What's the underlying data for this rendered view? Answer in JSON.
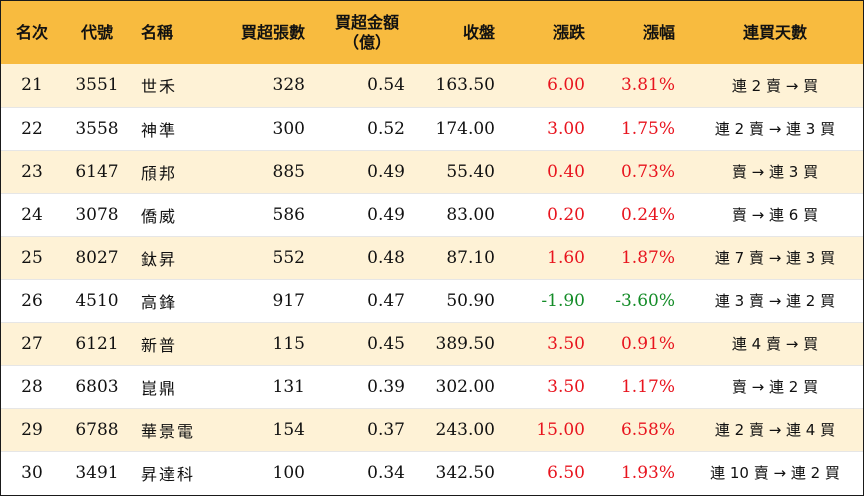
{
  "colors": {
    "header_bg": "#F8BB3F",
    "row_alt_bg": "#FEF2D6",
    "up": "#E8141E",
    "down": "#148C28"
  },
  "headers": {
    "rank": "名次",
    "code": "代號",
    "name": "名稱",
    "buy_lots": "買超張數",
    "buy_amount_1": "買超金額",
    "buy_amount_2": "（億）",
    "close": "收盤",
    "change": "漲跌",
    "change_pct": "漲幅",
    "streak": "連買天數"
  },
  "rows": [
    {
      "rank": "21",
      "code": "3551",
      "name": "世禾",
      "buy_lots": "328",
      "buy_amount": "0.54",
      "close": "163.50",
      "change": "6.00",
      "change_pct": "3.81%",
      "direction": "up",
      "streak": "連 2 賣 → 買"
    },
    {
      "rank": "22",
      "code": "3558",
      "name": "神準",
      "buy_lots": "300",
      "buy_amount": "0.52",
      "close": "174.00",
      "change": "3.00",
      "change_pct": "1.75%",
      "direction": "up",
      "streak": "連 2 賣 → 連 3 買"
    },
    {
      "rank": "23",
      "code": "6147",
      "name": "頎邦",
      "buy_lots": "885",
      "buy_amount": "0.49",
      "close": "55.40",
      "change": "0.40",
      "change_pct": "0.73%",
      "direction": "up",
      "streak": "賣 → 連 3 買"
    },
    {
      "rank": "24",
      "code": "3078",
      "name": "僑威",
      "buy_lots": "586",
      "buy_amount": "0.49",
      "close": "83.00",
      "change": "0.20",
      "change_pct": "0.24%",
      "direction": "up",
      "streak": "賣 → 連 6 買"
    },
    {
      "rank": "25",
      "code": "8027",
      "name": "鈦昇",
      "buy_lots": "552",
      "buy_amount": "0.48",
      "close": "87.10",
      "change": "1.60",
      "change_pct": "1.87%",
      "direction": "up",
      "streak": "連 7 賣 → 連 3 買"
    },
    {
      "rank": "26",
      "code": "4510",
      "name": "高鋒",
      "buy_lots": "917",
      "buy_amount": "0.47",
      "close": "50.90",
      "change": "-1.90",
      "change_pct": "-3.60%",
      "direction": "down",
      "streak": "連 3 賣 → 連 2 買"
    },
    {
      "rank": "27",
      "code": "6121",
      "name": "新普",
      "buy_lots": "115",
      "buy_amount": "0.45",
      "close": "389.50",
      "change": "3.50",
      "change_pct": "0.91%",
      "direction": "up",
      "streak": "連 4 賣 → 買"
    },
    {
      "rank": "28",
      "code": "6803",
      "name": "崑鼎",
      "buy_lots": "131",
      "buy_amount": "0.39",
      "close": "302.00",
      "change": "3.50",
      "change_pct": "1.17%",
      "direction": "up",
      "streak": "賣 → 連 2 買"
    },
    {
      "rank": "29",
      "code": "6788",
      "name": "華景電",
      "buy_lots": "154",
      "buy_amount": "0.37",
      "close": "243.00",
      "change": "15.00",
      "change_pct": "6.58%",
      "direction": "up",
      "streak": "連 2 賣 → 連 4 買"
    },
    {
      "rank": "30",
      "code": "3491",
      "name": "昇達科",
      "buy_lots": "100",
      "buy_amount": "0.34",
      "close": "342.50",
      "change": "6.50",
      "change_pct": "1.93%",
      "direction": "up",
      "streak": "連 10 賣 → 連 2 買"
    }
  ]
}
